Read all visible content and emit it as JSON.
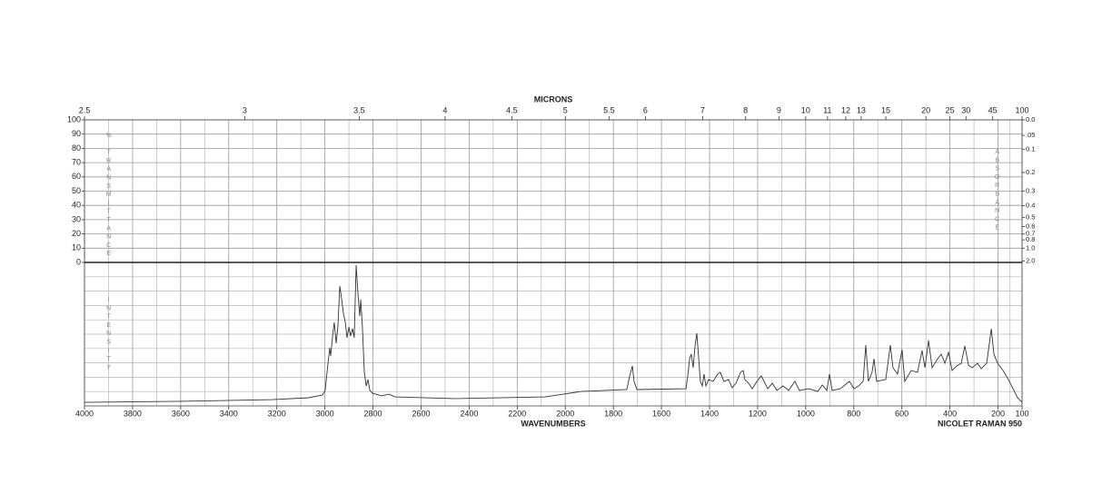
{
  "chart_data": [
    {
      "type": "grid",
      "x2label": "MICRONS",
      "x2ticks": [
        2.5,
        3,
        3.5,
        4,
        4.5,
        5,
        5.5,
        6,
        7,
        8,
        9,
        10,
        11,
        12,
        13,
        15,
        20,
        25,
        30,
        45,
        100
      ],
      "ylabel": "% TRANSMITTANCE",
      "ylim": [
        0,
        100
      ],
      "yticks": [
        0,
        10,
        20,
        30,
        40,
        50,
        60,
        70,
        80,
        90,
        100
      ],
      "y2label": "ABSORBANCE",
      "y2ticks": [
        {
          "value": 0,
          "label": "0.0"
        },
        {
          "value": 0.05,
          "label": ".05"
        },
        0.1,
        0.2,
        0.3,
        0.4,
        0.5,
        0.6,
        0.7,
        0.8,
        {
          "value": 1,
          "label": "1.0"
        },
        {
          "value": 2,
          "label": "2.0"
        }
      ],
      "grid": true
    },
    {
      "type": "line",
      "xlabel": "WAVENUMBERS",
      "ylabel": "INTENSITY",
      "annotation": "NICOLET RAMAN 950",
      "xlim": [
        4000,
        100
      ],
      "xticks": [
        4000,
        3800,
        3600,
        3400,
        3200,
        3000,
        2800,
        2600,
        2400,
        2200,
        2000,
        1800,
        1600,
        1400,
        1200,
        1000,
        800,
        600,
        400,
        200,
        100
      ],
      "ylim": [
        0,
        100
      ],
      "color": "#333333",
      "grid": true,
      "x": [
        4000,
        3596,
        3218,
        3067,
        3010,
        2999,
        2987,
        2980,
        2976,
        2968,
        2961,
        2953,
        2946,
        2938,
        2931,
        2923,
        2915,
        2908,
        2900,
        2893,
        2885,
        2878,
        2870,
        2862,
        2855,
        2851,
        2844,
        2836,
        2828,
        2821,
        2813,
        2802,
        2764,
        2734,
        2708,
        2462,
        2084,
        2008,
        1933,
        1744,
        1733,
        1721,
        1714,
        1702,
        1498,
        1491,
        1483,
        1476,
        1468,
        1460,
        1453,
        1445,
        1438,
        1430,
        1423,
        1415,
        1404,
        1385,
        1366,
        1355,
        1340,
        1321,
        1306,
        1290,
        1271,
        1260,
        1253,
        1238,
        1222,
        1203,
        1185,
        1173,
        1158,
        1139,
        1120,
        1094,
        1071,
        1045,
        1026,
        988,
        950,
        931,
        912,
        901,
        890,
        856,
        818,
        799,
        780,
        761,
        750,
        739,
        724,
        716,
        705,
        667,
        648,
        637,
        618,
        599,
        588,
        561,
        535,
        516,
        504,
        489,
        474,
        451,
        436,
        421,
        406,
        391,
        372,
        353,
        338,
        323,
        308,
        285,
        270,
        247,
        228,
        217,
        202,
        179,
        157,
        134,
        119,
        100
      ],
      "values": [
        2.5,
        3.2,
        4.4,
        5.7,
        7.6,
        10.8,
        29.7,
        40.5,
        34.8,
        48.7,
        58.2,
        43.7,
        55.1,
        83.5,
        75.3,
        64.6,
        58.2,
        47.5,
        55.1,
        48.7,
        53.8,
        47.5,
        98.1,
        77.2,
        62.7,
        74.1,
        55.1,
        23.4,
        13.9,
        18.4,
        10.8,
        8.9,
        7.0,
        8.2,
        6.3,
        5.1,
        6.3,
        8.2,
        10.1,
        11.4,
        20.3,
        27.8,
        17.1,
        11.4,
        12.0,
        20.3,
        32.9,
        36.1,
        26.6,
        42.4,
        50.6,
        32.9,
        17.1,
        13.9,
        22.2,
        13.9,
        18.4,
        17.1,
        22.2,
        23.4,
        17.1,
        18.4,
        12.7,
        15.8,
        23.4,
        24.7,
        18.4,
        15.8,
        12.0,
        17.1,
        20.9,
        17.1,
        12.0,
        15.8,
        10.8,
        13.9,
        10.8,
        17.1,
        10.8,
        12.0,
        10.1,
        14.6,
        10.8,
        22.2,
        10.8,
        12.0,
        17.1,
        12.0,
        13.9,
        17.1,
        42.4,
        17.1,
        23.4,
        32.9,
        17.1,
        18.4,
        42.4,
        26.6,
        22.2,
        39.2,
        17.1,
        24.7,
        23.4,
        38.6,
        26.6,
        45.6,
        26.6,
        32.9,
        36.1,
        29.7,
        37.3,
        24.7,
        27.8,
        29.7,
        41.8,
        28.5,
        26.6,
        29.7,
        25.9,
        29.7,
        53.8,
        36.1,
        29.7,
        24.7,
        18.4,
        10.8,
        5.7,
        2.5
      ]
    }
  ]
}
